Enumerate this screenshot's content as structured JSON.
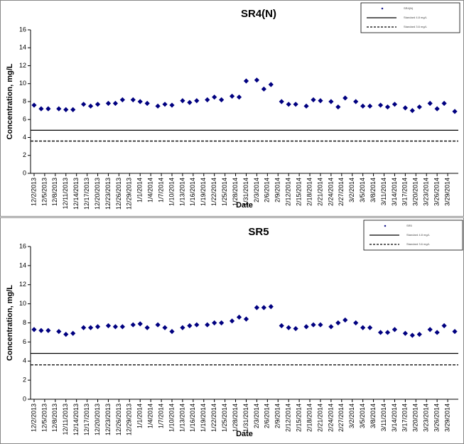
{
  "chart_data": [
    {
      "type": "scatter",
      "title": "SR4(N)",
      "x_label": "Date",
      "y_label": "Concentration, mg/L",
      "x": [
        "12/2/2013",
        "12/4/2013",
        "12/6/2013",
        "12/9/2013",
        "12/11/2013",
        "12/13/2013",
        "12/16/2013",
        "12/18/2013",
        "12/20/2013",
        "12/23/2013",
        "12/25/2013",
        "12/27/2013",
        "12/30/2013",
        "1/1/2014",
        "1/3/2014",
        "1/6/2014",
        "1/8/2014",
        "1/10/2014",
        "1/13/2014",
        "1/15/2014",
        "1/17/2014",
        "1/20/2014",
        "1/22/2014",
        "1/24/2014",
        "1/27/2014",
        "1/29/2014",
        "1/31/2014",
        "2/3/2014",
        "2/5/2014",
        "2/7/2014",
        "2/10/2014",
        "2/12/2014",
        "2/14/2014",
        "2/17/2014",
        "2/19/2014",
        "2/21/2014",
        "2/24/2014",
        "2/26/2014",
        "2/28/2014",
        "3/3/2014",
        "3/5/2014",
        "3/7/2014",
        "3/10/2014",
        "3/12/2014",
        "3/14/2014",
        "3/17/2014",
        "3/19/2014",
        "3/21/2014",
        "3/24/2014",
        "3/26/2014",
        "3/28/2014",
        "3/31/2014"
      ],
      "series": [
        {
          "name": "SR4(N)",
          "color": "#000080",
          "values": [
            7.6,
            7.2,
            7.2,
            7.2,
            7.1,
            7.1,
            7.7,
            7.5,
            7.7,
            7.8,
            7.8,
            8.2,
            8.2,
            8.0,
            7.8,
            7.5,
            7.7,
            7.6,
            8.1,
            7.9,
            8.1,
            8.2,
            8.5,
            8.2,
            8.6,
            8.5,
            10.3,
            10.4,
            9.4,
            9.9,
            8.0,
            7.7,
            7.7,
            7.5,
            8.2,
            8.1,
            8.0,
            7.4,
            8.4,
            8.0,
            7.5,
            7.5,
            7.6,
            7.4,
            7.7,
            7.3,
            7.0,
            7.4,
            7.8,
            7.2,
            7.8,
            6.9
          ]
        }
      ],
      "reference_lines": [
        {
          "name": "Standard 4.8 mg/L",
          "value": 4.8,
          "style": "solid",
          "color": "#000000"
        },
        {
          "name": "Standard 3.6 mg/L",
          "value": 3.6,
          "style": "dashed",
          "color": "#000000"
        }
      ],
      "xlim": [
        "12/1/2013",
        "4/1/2014"
      ],
      "xticks": [
        "12/2/2013",
        "12/5/2013",
        "12/8/2013",
        "12/11/2013",
        "12/14/2013",
        "12/17/2013",
        "12/20/2013",
        "12/23/2013",
        "12/26/2013",
        "12/29/2013",
        "1/1/2014",
        "1/4/2014",
        "1/7/2014",
        "1/10/2014",
        "1/13/2014",
        "1/16/2014",
        "1/19/2014",
        "1/22/2014",
        "1/25/2014",
        "1/28/2014",
        "1/31/2014",
        "2/3/2014",
        "2/6/2014",
        "2/9/2014",
        "2/12/2014",
        "2/15/2014",
        "2/18/2014",
        "2/21/2014",
        "2/24/2014",
        "2/27/2014",
        "3/2/2014",
        "3/5/2014",
        "3/8/2014",
        "3/11/2014",
        "3/14/2014",
        "3/17/2014",
        "3/20/2014",
        "3/23/2014",
        "3/26/2014",
        "3/29/2014"
      ],
      "ylim": [
        0,
        16
      ],
      "yticks": [
        0,
        2,
        4,
        6,
        8,
        10,
        12,
        14,
        16
      ],
      "grid": false,
      "legend": "upper right"
    },
    {
      "type": "scatter",
      "title": "SR5",
      "x_label": "Date",
      "y_label": "Concentration, mg/L",
      "x": [
        "12/2/2013",
        "12/4/2013",
        "12/6/2013",
        "12/9/2013",
        "12/11/2013",
        "12/13/2013",
        "12/16/2013",
        "12/18/2013",
        "12/20/2013",
        "12/23/2013",
        "12/25/2013",
        "12/27/2013",
        "12/30/2013",
        "1/1/2014",
        "1/3/2014",
        "1/6/2014",
        "1/8/2014",
        "1/10/2014",
        "1/13/2014",
        "1/15/2014",
        "1/17/2014",
        "1/20/2014",
        "1/22/2014",
        "1/24/2014",
        "1/27/2014",
        "1/29/2014",
        "1/31/2014",
        "2/3/2014",
        "2/5/2014",
        "2/7/2014",
        "2/10/2014",
        "2/12/2014",
        "2/14/2014",
        "2/17/2014",
        "2/19/2014",
        "2/21/2014",
        "2/24/2014",
        "2/26/2014",
        "2/28/2014",
        "3/3/2014",
        "3/5/2014",
        "3/7/2014",
        "3/10/2014",
        "3/12/2014",
        "3/14/2014",
        "3/17/2014",
        "3/19/2014",
        "3/21/2014",
        "3/24/2014",
        "3/26/2014",
        "3/28/2014",
        "3/31/2014"
      ],
      "series": [
        {
          "name": "SR5",
          "color": "#000080",
          "values": [
            7.3,
            7.2,
            7.2,
            7.1,
            6.8,
            6.9,
            7.5,
            7.5,
            7.6,
            7.7,
            7.6,
            7.6,
            7.8,
            7.9,
            7.5,
            7.8,
            7.5,
            7.1,
            7.5,
            7.7,
            7.8,
            7.8,
            8.0,
            8.0,
            8.2,
            8.6,
            8.4,
            9.6,
            9.6,
            9.7,
            7.7,
            7.5,
            7.4,
            7.6,
            7.8,
            7.8,
            7.6,
            8.0,
            8.3,
            8.0,
            7.5,
            7.5,
            7.0,
            7.0,
            7.3,
            6.9,
            6.7,
            6.8,
            7.3,
            7.0,
            7.7,
            7.1
          ]
        }
      ],
      "reference_lines": [
        {
          "name": "Standard 4.8 mg/L",
          "value": 4.8,
          "style": "solid",
          "color": "#000000"
        },
        {
          "name": "Standard 3.6 mg/L",
          "value": 3.6,
          "style": "dashed",
          "color": "#000000"
        }
      ],
      "xlim": [
        "12/1/2013",
        "4/1/2014"
      ],
      "xticks": [
        "12/2/2013",
        "12/5/2013",
        "12/8/2013",
        "12/11/2013",
        "12/14/2013",
        "12/17/2013",
        "12/20/2013",
        "12/23/2013",
        "12/26/2013",
        "12/29/2013",
        "1/1/2014",
        "1/4/2014",
        "1/7/2014",
        "1/10/2014",
        "1/13/2014",
        "1/16/2014",
        "1/19/2014",
        "1/22/2014",
        "1/25/2014",
        "1/28/2014",
        "1/31/2014",
        "2/3/2014",
        "2/6/2014",
        "2/9/2014",
        "2/12/2014",
        "2/15/2014",
        "2/18/2014",
        "2/21/2014",
        "2/24/2014",
        "2/27/2014",
        "3/2/2014",
        "3/5/2014",
        "3/8/2014",
        "3/11/2014",
        "3/14/2014",
        "3/17/2014",
        "3/20/2014",
        "3/23/2014",
        "3/26/2014",
        "3/29/2014"
      ],
      "ylim": [
        0,
        16
      ],
      "yticks": [
        0,
        2,
        4,
        6,
        8,
        10,
        12,
        14,
        16
      ],
      "grid": false,
      "legend": "upper right"
    }
  ]
}
